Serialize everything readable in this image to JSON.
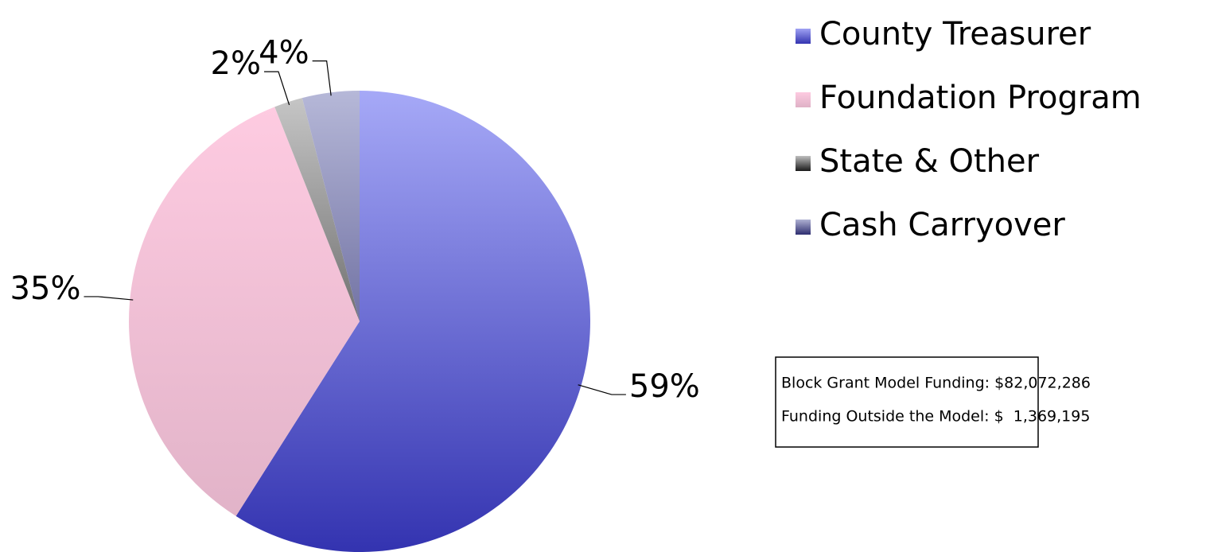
{
  "chart_data": {
    "type": "pie",
    "categories": [
      "County Treasurer",
      "Foundation Program",
      "State & Other",
      "Cash Carryover"
    ],
    "values": [
      59,
      35,
      2,
      4
    ],
    "value_labels": [
      "59%",
      "35%",
      "2%",
      "4%"
    ],
    "colors": [
      [
        "#a6a9f7",
        "#3333b0"
      ],
      [
        "#ffcce2",
        "#dfb1c6"
      ],
      [
        "#c8c8c8",
        "#1a1a1a"
      ],
      [
        "#b6b8d8",
        "#2e2e70"
      ]
    ],
    "start_angle": 0,
    "direction": "clockwise",
    "legend": "right",
    "annotations": [
      "Block Grant Model Funding: $82,072,286",
      "Funding Outside the Model: $  1,369,195"
    ]
  }
}
